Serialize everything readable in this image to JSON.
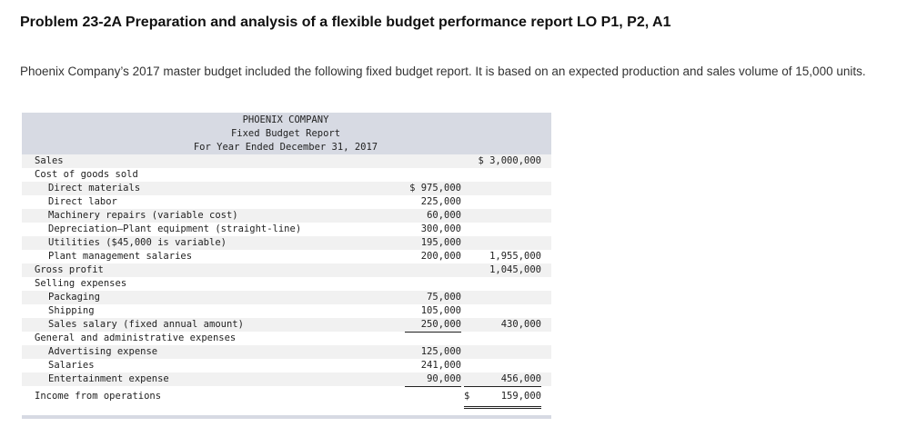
{
  "title": "Problem 23-2A Preparation and analysis of a flexible budget performance report LO P1, P2, A1",
  "intro": "Phoenix Company’s 2017 master budget included the following fixed budget report. It is based on an expected production and sales volume of 15,000 units.",
  "report": {
    "company": "PHOENIX COMPANY",
    "name": "Fixed Budget Report",
    "period": "For Year Ended December 31, 2017",
    "rows": [
      {
        "label": "Sales",
        "c1": "",
        "c2": "$ 3,000,000"
      },
      {
        "label": "Cost of goods sold",
        "c1": "",
        "c2": ""
      },
      {
        "label": "Direct materials",
        "c1": "$ 975,000",
        "c2": ""
      },
      {
        "label": "Direct labor",
        "c1": "225,000",
        "c2": ""
      },
      {
        "label": "Machinery repairs (variable cost)",
        "c1": "60,000",
        "c2": ""
      },
      {
        "label": "Depreciation—Plant equipment (straight-line)",
        "c1": "300,000",
        "c2": ""
      },
      {
        "label": "Utilities ($45,000 is variable)",
        "c1": "195,000",
        "c2": ""
      },
      {
        "label": "Plant management salaries",
        "c1": "200,000",
        "c2": "1,955,000"
      },
      {
        "label": "Gross profit",
        "c1": "",
        "c2": "1,045,000"
      },
      {
        "label": "Selling expenses",
        "c1": "",
        "c2": ""
      },
      {
        "label": "Packaging",
        "c1": "75,000",
        "c2": ""
      },
      {
        "label": "Shipping",
        "c1": "105,000",
        "c2": ""
      },
      {
        "label": "Sales salary (fixed annual amount)",
        "c1": "250,000",
        "c2": "430,000"
      },
      {
        "label": "General and administrative expenses",
        "c1": "",
        "c2": ""
      },
      {
        "label": "Advertising expense",
        "c1": "125,000",
        "c2": ""
      },
      {
        "label": "Salaries",
        "c1": "241,000",
        "c2": ""
      },
      {
        "label": "Entertainment expense",
        "c1": "90,000",
        "c2": "456,000"
      },
      {
        "label": "Income from operations",
        "c1": "",
        "c2_sign": "$",
        "c2": "159,000"
      }
    ]
  }
}
